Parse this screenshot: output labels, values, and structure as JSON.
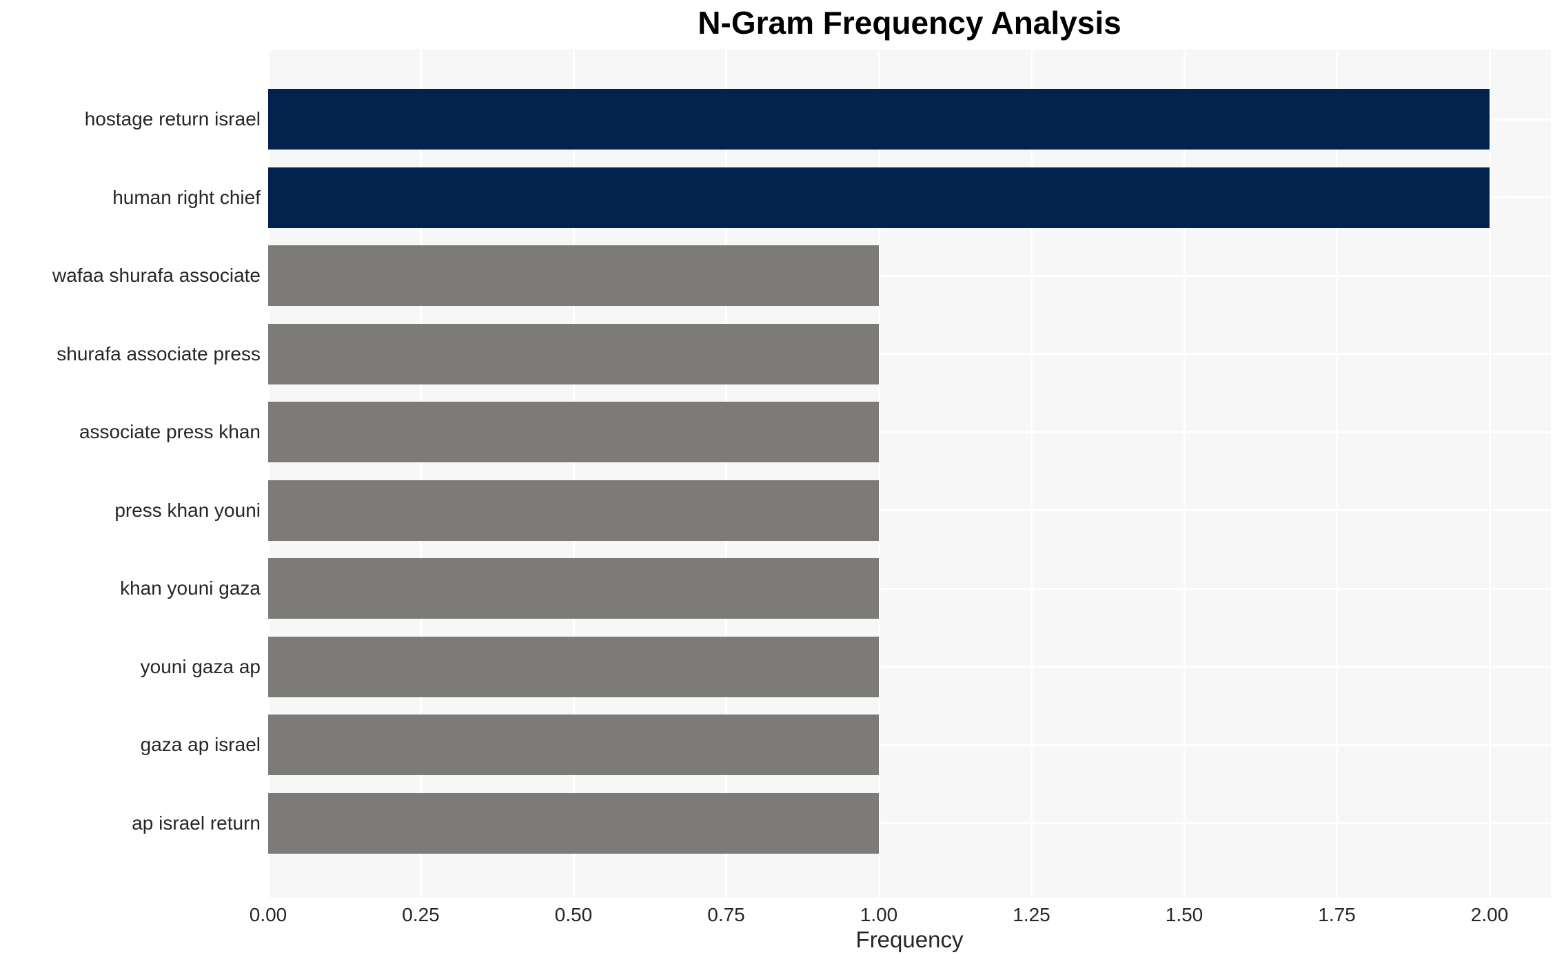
{
  "chart_data": {
    "type": "bar",
    "orientation": "horizontal",
    "title": "N-Gram Frequency Analysis",
    "xlabel": "Frequency",
    "ylabel": "",
    "categories": [
      "hostage return israel",
      "human right chief",
      "wafaa shurafa associate",
      "shurafa associate press",
      "associate press khan",
      "press khan youni",
      "khan youni gaza",
      "youni gaza ap",
      "gaza ap israel",
      "ap israel return"
    ],
    "values": [
      2.0,
      2.0,
      1.0,
      1.0,
      1.0,
      1.0,
      1.0,
      1.0,
      1.0,
      1.0
    ],
    "bar_colors": [
      "#02234d",
      "#02234d",
      "#7c7b77",
      "#7c7b77",
      "#7c7b77",
      "#7c7b77",
      "#7c7b77",
      "#7c7b77",
      "#7c7b77",
      "#7c7b77"
    ],
    "x_ticks": [
      "0.00",
      "0.25",
      "0.50",
      "0.75",
      "1.00",
      "1.25",
      "1.50",
      "1.75",
      "2.00"
    ],
    "x_tick_values": [
      0,
      0.25,
      0.5,
      0.75,
      1.0,
      1.25,
      1.5,
      1.75,
      2.0
    ],
    "xlim": [
      0,
      2.1
    ],
    "grid": true,
    "legend_position": "none",
    "colors": {
      "page_background": "#ffffff",
      "plot_background": "#f7f7f7",
      "gridline": "#ffffff",
      "tick_text": "#262626",
      "title_text": "#000000"
    }
  }
}
